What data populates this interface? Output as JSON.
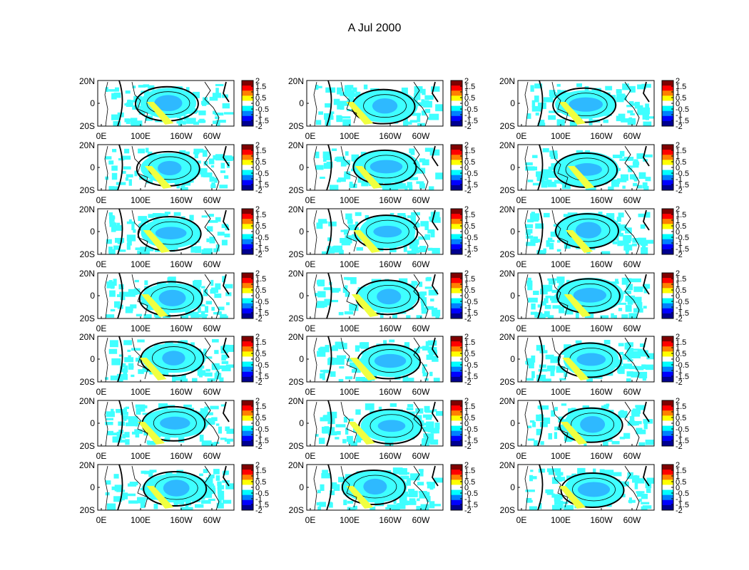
{
  "title": "A Jul 2000",
  "colormap": "jet",
  "panel_grid": {
    "rows": 7,
    "cols": 3
  },
  "map": {
    "type": "anomaly-map",
    "region": "Tropical Pacific / Indian Ocean",
    "lat_ticks": [
      "20N",
      "0",
      "20S"
    ],
    "lon_ticks": [
      "0E",
      "100E",
      "160W",
      "60W"
    ]
  },
  "colorbar": {
    "range": [
      -2,
      2
    ],
    "ticks": [
      "2",
      "1.5",
      "1",
      "0.5",
      "0",
      "-0.5",
      "-1",
      "-1.5",
      "-2"
    ],
    "colors": [
      "#00008f",
      "#0000ff",
      "#0080ff",
      "#00ffff",
      "#ffffff",
      "#ffff00",
      "#ff8000",
      "#ff0000",
      "#800000"
    ]
  },
  "colors": {
    "negative_fill": "#3fffff",
    "deep_negative_fill": "#2080ff",
    "positive_fill": "#f0ff40",
    "contour": "#000000"
  }
}
